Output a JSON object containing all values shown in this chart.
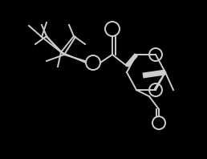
{
  "bg_color": "#000000",
  "line_color": "#cccccc",
  "line_width": 1.4,
  "figsize": [
    2.58,
    1.98
  ],
  "dpi": 100
}
